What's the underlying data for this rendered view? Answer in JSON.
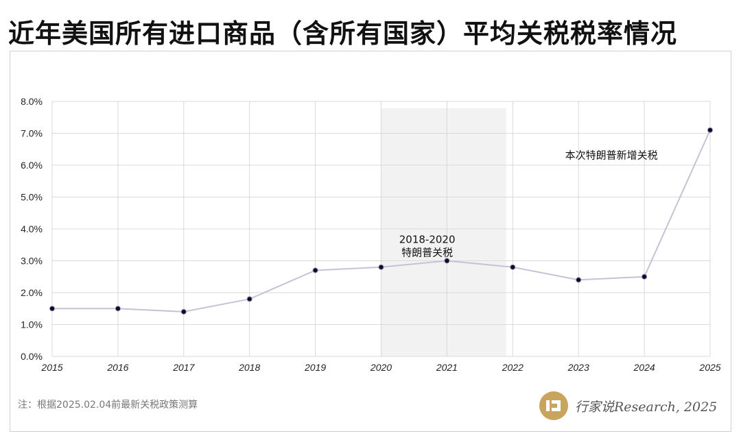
{
  "title": "近年美国所有进口商品（含所有国家）平均关税税率情况",
  "note": "注：根据2025.02.04前最新关税政策测算",
  "brand": {
    "text": "行家说Research, 2025",
    "icon": "brand-logo-icon",
    "color": "#c9a45d"
  },
  "chart_data": {
    "type": "line",
    "x": [
      "2015",
      "2016",
      "2017",
      "2018",
      "2019",
      "2020",
      "2021",
      "2022",
      "2023",
      "2024",
      "2025"
    ],
    "series": [
      {
        "values": [
          1.5,
          1.5,
          1.4,
          1.8,
          2.7,
          2.8,
          3.0,
          2.8,
          2.4,
          2.5,
          7.1
        ]
      }
    ],
    "ylim": [
      0,
      8
    ],
    "yticks": [
      "0.0%",
      "1.0%",
      "2.0%",
      "3.0%",
      "4.0%",
      "5.0%",
      "6.0%",
      "7.0%",
      "8.0%"
    ],
    "y_format": "percent",
    "grid": true,
    "line_color": "#c4c2d4",
    "marker_color": "#0d0d2b",
    "shaded_region": {
      "x_from": 2020,
      "x_to": 2021.9,
      "color": "#f2f2f2"
    },
    "annotations": [
      {
        "text_lines": [
          "2018-2020",
          "特朗普关税"
        ],
        "x": 2020.7,
        "y": 3.15
      },
      {
        "text_lines": [
          "本次特朗普新增关税"
        ],
        "x": 2023.5,
        "y": 6.2
      }
    ]
  }
}
